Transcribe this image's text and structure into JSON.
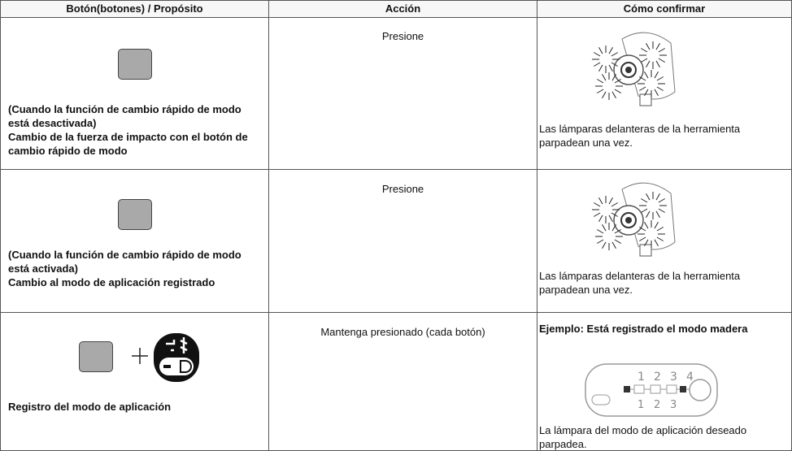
{
  "table": {
    "header": [
      "Botón(botones) / Propósito",
      "Acción",
      "Cómo confirmar"
    ],
    "rows": [
      {
        "purpose": [
          "(Cuando la función de cambio rápido de modo está desactivada)",
          "Cambio de la fuerza de impacto con el botón de cambio rápido de modo"
        ],
        "action": "Presione",
        "confirm": {
          "text": "Las lámparas delanteras de la herramienta parpadean una vez."
        }
      },
      {
        "purpose": [
          "(Cuando la función de cambio rápido de modo está activada)",
          "Cambio al modo de aplicación registrado"
        ],
        "action": "Presione",
        "confirm": {
          "text": "Las lámparas delanteras de la herramienta parpadean una vez."
        }
      },
      {
        "purpose": [
          "Registro del modo de aplicación"
        ],
        "action": "Mantenga presionado (cada botón)",
        "confirm": {
          "heading": "Ejemplo: Está registrado el modo madera",
          "panel_top": [
            "1",
            "2",
            "3",
            "4"
          ],
          "panel_bottom": [
            "1",
            "2",
            "3"
          ],
          "text": "La lámpara del modo de aplicación deseado parpadea."
        }
      }
    ]
  }
}
